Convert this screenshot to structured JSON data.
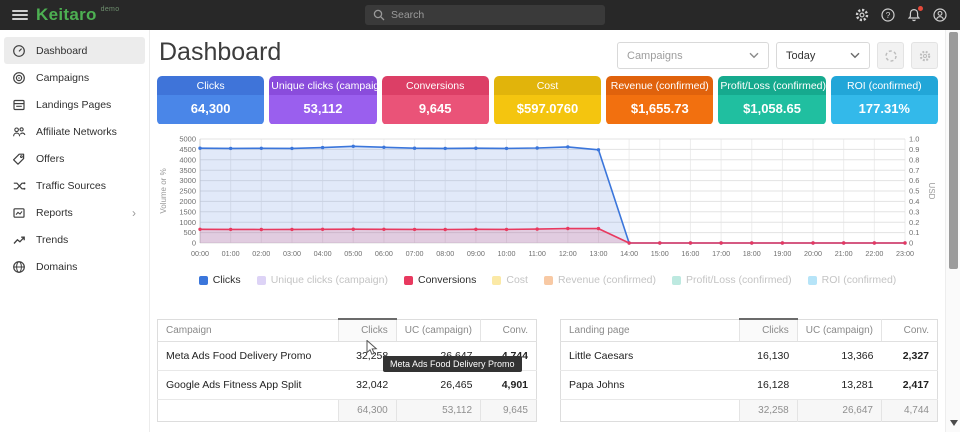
{
  "topbar": {
    "logo": "Keitaro",
    "logo_badge": "demo",
    "search_placeholder": "Search"
  },
  "sidebar": {
    "items": [
      {
        "label": "Dashboard",
        "icon": "gauge-icon",
        "active": true
      },
      {
        "label": "Campaigns",
        "icon": "target-icon"
      },
      {
        "label": "Landings Pages",
        "icon": "pages-icon"
      },
      {
        "label": "Affiliate Networks",
        "icon": "people-icon"
      },
      {
        "label": "Offers",
        "icon": "tag-icon"
      },
      {
        "label": "Traffic Sources",
        "icon": "split-icon"
      },
      {
        "label": "Reports",
        "icon": "report-icon",
        "has_submenu": true
      },
      {
        "label": "Trends",
        "icon": "trend-icon"
      },
      {
        "label": "Domains",
        "icon": "globe-icon"
      }
    ],
    "submenu_chevron": "›"
  },
  "header": {
    "title": "Dashboard",
    "campaign_filter_placeholder": "Campaigns",
    "date_filter": "Today"
  },
  "stat_cards": [
    {
      "label": "Clicks",
      "value": "64,300",
      "color": "#4a86e8",
      "header_color": "#3f74d9"
    },
    {
      "label": "Unique clicks (campaign)",
      "value": "53,112",
      "color": "#9a5fee",
      "header_color": "#8a4cdc"
    },
    {
      "label": "Conversions",
      "value": "9,645",
      "color": "#ea5378",
      "header_color": "#dc3f66"
    },
    {
      "label": "Cost",
      "value": "$597.0760",
      "color": "#f4c50f",
      "header_color": "#e1b40b"
    },
    {
      "label": "Revenue (confirmed)",
      "value": "$1,655.73",
      "color": "#f2700f",
      "header_color": "#e0620c"
    },
    {
      "label": "Profit/Loss (confirmed)",
      "value": "$1,058.65",
      "color": "#20bfa0",
      "header_color": "#16aa8e"
    },
    {
      "label": "ROI (confirmed)",
      "value": "177.31%",
      "color": "#33b9ea",
      "header_color": "#22a6d8"
    }
  ],
  "chart_data": {
    "type": "area",
    "x_labels": [
      "00:00",
      "01:00",
      "02:00",
      "03:00",
      "04:00",
      "05:00",
      "06:00",
      "07:00",
      "08:00",
      "09:00",
      "10:00",
      "11:00",
      "12:00",
      "13:00",
      "14:00",
      "15:00",
      "16:00",
      "17:00",
      "18:00",
      "19:00",
      "20:00",
      "21:00",
      "22:00",
      "23:00"
    ],
    "left_axis": {
      "label": "Volume or %",
      "min": 0,
      "max": 5000,
      "step": 500
    },
    "right_axis": {
      "label": "USD",
      "min": 0,
      "max": 1.0,
      "step": 0.1
    },
    "grid": true,
    "legend_position": "bottom",
    "series": [
      {
        "name": "Clicks",
        "color": "#3b76db",
        "fill": "rgba(66,120,216,0.16)",
        "values": [
          4560,
          4550,
          4555,
          4550,
          4585,
          4650,
          4600,
          4560,
          4550,
          4560,
          4550,
          4565,
          4620,
          4480,
          0,
          0,
          0,
          0,
          0,
          0,
          0,
          0,
          0,
          0
        ]
      },
      {
        "name": "Conversions",
        "color": "#e8395f",
        "fill": "rgba(232,57,95,0.16)",
        "values": [
          660,
          655,
          650,
          655,
          660,
          665,
          660,
          655,
          650,
          660,
          655,
          668,
          695,
          690,
          0,
          0,
          0,
          0,
          0,
          0,
          0,
          0,
          0,
          0
        ]
      }
    ],
    "hidden_series": [
      "Unique clicks (campaign)",
      "Cost",
      "Revenue (confirmed)",
      "Profit/Loss (confirmed)",
      "ROI (confirmed)"
    ]
  },
  "legend": [
    {
      "label": "Clicks",
      "color": "#3b76db",
      "active": true
    },
    {
      "label": "Unique clicks (campaign)",
      "color": "#ddd3f6",
      "active": false
    },
    {
      "label": "Conversions",
      "color": "#e8395f",
      "active": true
    },
    {
      "label": "Cost",
      "color": "#fbe9a6",
      "active": false
    },
    {
      "label": "Revenue (confirmed)",
      "color": "#f8c9a4",
      "active": false
    },
    {
      "label": "Profit/Loss (confirmed)",
      "color": "#bde9e0",
      "active": false
    },
    {
      "label": "ROI (confirmed)",
      "color": "#b6e4f8",
      "active": false
    }
  ],
  "tables": [
    {
      "columns": [
        "Campaign",
        "Clicks",
        "UC (campaign)",
        "Conv."
      ],
      "sorted_column": "Clicks",
      "rows": [
        [
          "Meta Ads Food Delivery Promo",
          "32,258",
          "26,647",
          "4,744"
        ],
        [
          "Google Ads Fitness App Split",
          "32,042",
          "26,465",
          "4,901"
        ]
      ],
      "totals": [
        "",
        "64,300",
        "53,112",
        "9,645"
      ]
    },
    {
      "columns": [
        "Landing page",
        "Clicks",
        "UC (campaign)",
        "Conv."
      ],
      "sorted_column": "Clicks",
      "rows": [
        [
          "Little Caesars",
          "16,130",
          "13,366",
          "2,327"
        ],
        [
          "Papa Johns",
          "16,128",
          "13,281",
          "2,417"
        ]
      ],
      "totals": [
        "",
        "32,258",
        "26,647",
        "4,744"
      ]
    }
  ],
  "tooltip": {
    "text": "Meta Ads Food Delivery Promo"
  }
}
